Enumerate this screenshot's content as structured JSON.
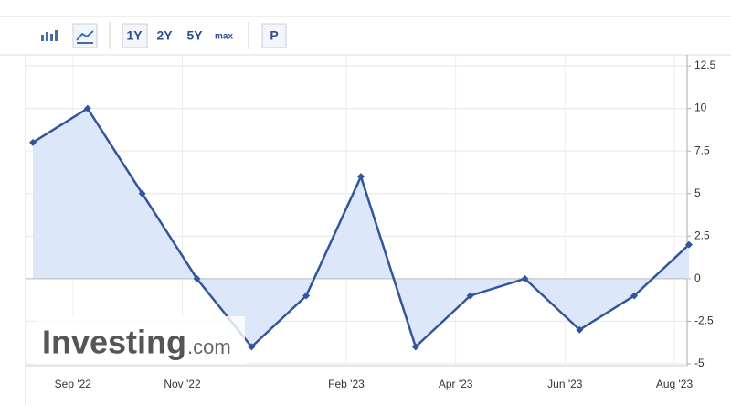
{
  "toolbar": {
    "buttons": [
      "1Y",
      "2Y",
      "5Y",
      "max",
      "P"
    ]
  },
  "watermark": {
    "brand": "Investing",
    "suffix": ".com"
  },
  "chart_data": {
    "type": "line",
    "categories": [
      null,
      "Sep '22",
      null,
      "Nov '22",
      null,
      null,
      "Feb '23",
      null,
      "Apr '23",
      null,
      "Jun '23",
      null,
      "Aug '23"
    ],
    "values": [
      8,
      10,
      5,
      0,
      -4,
      -1,
      6,
      -4,
      -1,
      0,
      -3,
      -1,
      2
    ],
    "color": "#33569b",
    "fill": "#dce8fa",
    "ylim": [
      -5,
      12.5
    ],
    "yticks": [
      12.5,
      10,
      7.5,
      5,
      2.5,
      0,
      -2.5,
      -5
    ],
    "grid": true
  }
}
